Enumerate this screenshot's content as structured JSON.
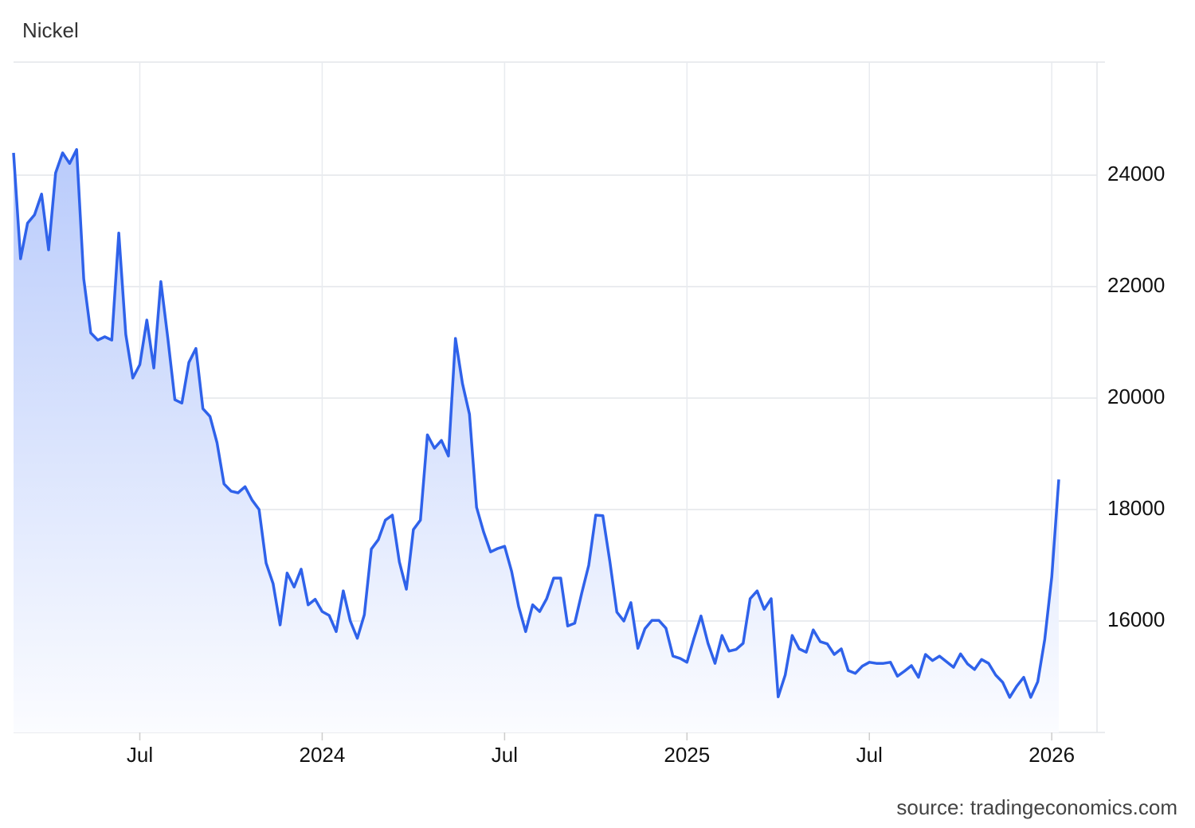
{
  "chart_data": {
    "type": "area",
    "title": "Nickel",
    "source": "source: tradingeconomics.com",
    "categories": [
      null,
      null,
      null,
      null,
      null,
      null,
      null,
      null,
      null,
      null,
      null,
      null,
      null,
      null,
      null,
      null,
      null,
      null,
      "Jul",
      null,
      null,
      null,
      null,
      null,
      null,
      null,
      null,
      null,
      null,
      null,
      null,
      null,
      null,
      null,
      null,
      null,
      null,
      null,
      null,
      null,
      null,
      null,
      null,
      null,
      "2024",
      null,
      null,
      null,
      null,
      null,
      null,
      null,
      null,
      null,
      null,
      null,
      null,
      null,
      null,
      null,
      null,
      null,
      null,
      null,
      null,
      null,
      null,
      null,
      null,
      null,
      "Jul",
      null,
      null,
      null,
      null,
      null,
      null,
      null,
      null,
      null,
      null,
      null,
      null,
      null,
      null,
      null,
      null,
      null,
      null,
      null,
      null,
      null,
      null,
      null,
      null,
      null,
      "2025",
      null,
      null,
      null,
      null,
      null,
      null,
      null,
      null,
      null,
      null,
      null,
      null,
      null,
      null,
      null,
      null,
      null,
      null,
      null,
      null,
      null,
      null,
      null,
      null,
      null,
      "Jul",
      null,
      null,
      null,
      null,
      null,
      null,
      null,
      null,
      null,
      null,
      null,
      null,
      null,
      null,
      null,
      null,
      null,
      null,
      null,
      null,
      null,
      null,
      null,
      null,
      null,
      "2026",
      null
    ],
    "values": [
      24400,
      22500,
      23140,
      23290,
      23660,
      22660,
      24040,
      24400,
      24210,
      24460,
      22140,
      21170,
      21040,
      21100,
      21040,
      22960,
      21140,
      20360,
      20600,
      21400,
      20540,
      22090,
      21070,
      19970,
      19910,
      20640,
      20890,
      19810,
      19670,
      19200,
      18460,
      18330,
      18300,
      18410,
      18170,
      18000,
      17040,
      16670,
      15930,
      16860,
      16610,
      16930,
      16290,
      16390,
      16170,
      16100,
      15810,
      16540,
      16000,
      15690,
      16110,
      17290,
      17460,
      17810,
      17900,
      17060,
      16570,
      17640,
      17810,
      19340,
      19100,
      19240,
      18960,
      21070,
      20260,
      19710,
      18040,
      17600,
      17240,
      17300,
      17340,
      16890,
      16260,
      15810,
      16290,
      16170,
      16400,
      16770,
      16770,
      15910,
      15960,
      16500,
      17000,
      17900,
      17890,
      17070,
      16160,
      16000,
      16330,
      15510,
      15860,
      16010,
      16010,
      15870,
      15370,
      15330,
      15260,
      15690,
      16090,
      15600,
      15240,
      15740,
      15460,
      15490,
      15600,
      16400,
      16540,
      16210,
      16400,
      14640,
      15030,
      15740,
      15500,
      15440,
      15840,
      15630,
      15590,
      15400,
      15500,
      15110,
      15060,
      15190,
      15260,
      15240,
      15240,
      15260,
      15010,
      15100,
      15200,
      14990,
      15400,
      15290,
      15370,
      15270,
      15170,
      15410,
      15230,
      15130,
      15310,
      15240,
      15030,
      14900,
      14630,
      14830,
      14990,
      14630,
      14910,
      15670,
      16790,
      18540
    ],
    "color": "#2f62ea",
    "ylim": [
      14000,
      26000
    ],
    "yticks": [
      16000,
      18000,
      20000,
      22000,
      24000
    ],
    "grid": true
  }
}
